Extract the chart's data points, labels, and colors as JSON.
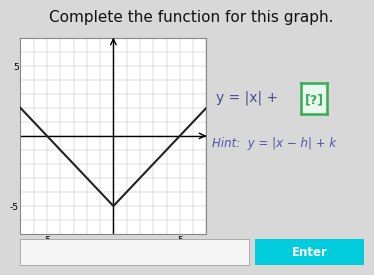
{
  "title": "Complete the function for this graph.",
  "title_fontsize": 11,
  "background_color": "#d8d8d8",
  "graph_bg": "#ffffff",
  "xlim": [
    -7,
    7
  ],
  "ylim": [
    -7,
    7
  ],
  "xtick_labels": [
    "-5",
    "5"
  ],
  "xtick_pos": [
    -5,
    5
  ],
  "ytick_labels": [
    "5",
    "-5"
  ],
  "ytick_pos": [
    5,
    -5
  ],
  "vertex_x": 0,
  "vertex_y": -5,
  "line_color": "#222222",
  "line_width": 1.5,
  "formula_text": "y = |x| + ",
  "bracket_text": "[?]",
  "hint_text": "Hint:  y = |x − h| + k",
  "formula_color": "#4a4a8a",
  "bracket_color": "#3aaa55",
  "bracket_bg": "#e8f8ee",
  "hint_color": "#5555aa",
  "enter_button_color": "#00ccdd",
  "enter_button_text": "Enter",
  "enter_text_color": "#ffffff",
  "grid_color": "#bbbbbb",
  "axis_color": "#000000",
  "graph_border_color": "#888888"
}
